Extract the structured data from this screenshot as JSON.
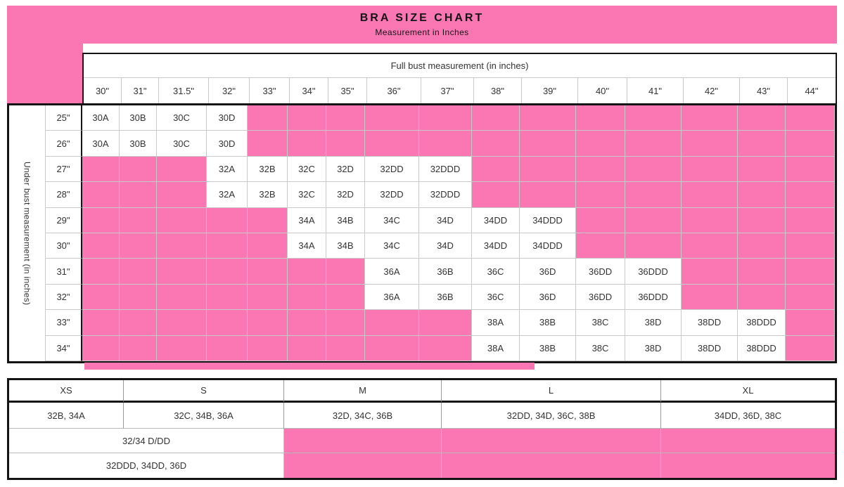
{
  "chart_data": {
    "type": "table",
    "title": "BRA SIZE CHART",
    "subtitle": "Measurement in Inches",
    "accent_pink": "#FA77B4",
    "main_table": {
      "column_axis_label": "Full bust measurement (in inches)",
      "row_axis_label": "Under bust measurement (in inches)",
      "columns": [
        "30\"",
        "31\"",
        "31.5\"",
        "32\"",
        "33\"",
        "34\"",
        "35\"",
        "36\"",
        "37\"",
        "38\"",
        "39\"",
        "40\"",
        "41\"",
        "42\"",
        "43\"",
        "44\""
      ],
      "rows": [
        {
          "under_bust": "25\"",
          "cells": [
            "30A",
            "30B",
            "30C",
            "30D",
            "",
            "",
            "",
            "",
            "",
            "",
            "",
            "",
            "",
            "",
            "",
            ""
          ]
        },
        {
          "under_bust": "26\"",
          "cells": [
            "30A",
            "30B",
            "30C",
            "30D",
            "",
            "",
            "",
            "",
            "",
            "",
            "",
            "",
            "",
            "",
            "",
            ""
          ]
        },
        {
          "under_bust": "27\"",
          "cells": [
            "",
            "",
            "",
            "32A",
            "32B",
            "32C",
            "32D",
            "32DD",
            "32DDD",
            "",
            "",
            "",
            "",
            "",
            "",
            ""
          ]
        },
        {
          "under_bust": "28\"",
          "cells": [
            "",
            "",
            "",
            "32A",
            "32B",
            "32C",
            "32D",
            "32DD",
            "32DDD",
            "",
            "",
            "",
            "",
            "",
            "",
            ""
          ]
        },
        {
          "under_bust": "29\"",
          "cells": [
            "",
            "",
            "",
            "",
            "",
            "34A",
            "34B",
            "34C",
            "34D",
            "34DD",
            "34DDD",
            "",
            "",
            "",
            "",
            ""
          ]
        },
        {
          "under_bust": "30\"",
          "cells": [
            "",
            "",
            "",
            "",
            "",
            "34A",
            "34B",
            "34C",
            "34D",
            "34DD",
            "34DDD",
            "",
            "",
            "",
            "",
            ""
          ]
        },
        {
          "under_bust": "31\"",
          "cells": [
            "",
            "",
            "",
            "",
            "",
            "",
            "",
            "36A",
            "36B",
            "36C",
            "36D",
            "36DD",
            "36DDD",
            "",
            "",
            ""
          ]
        },
        {
          "under_bust": "32\"",
          "cells": [
            "",
            "",
            "",
            "",
            "",
            "",
            "",
            "36A",
            "36B",
            "36C",
            "36D",
            "36DD",
            "36DDD",
            "",
            "",
            ""
          ]
        },
        {
          "under_bust": "33\"",
          "cells": [
            "",
            "",
            "",
            "",
            "",
            "",
            "",
            "",
            "",
            "38A",
            "38B",
            "38C",
            "38D",
            "38DD",
            "38DDD",
            ""
          ]
        },
        {
          "under_bust": "34\"",
          "cells": [
            "",
            "",
            "",
            "",
            "",
            "",
            "",
            "",
            "",
            "38A",
            "38B",
            "38C",
            "38D",
            "38DD",
            "38DDD",
            ""
          ]
        }
      ]
    },
    "letter_size_table": {
      "headers": [
        "XS",
        "S",
        "M",
        "L",
        "XL"
      ],
      "cup_sizes": [
        "32B, 34A",
        "32C, 34B, 36A",
        "32D, 34C, 36B",
        "32DD, 34D, 36C, 38B",
        "34DD, 36D, 38C"
      ],
      "extra_rows": [
        "32/34 D/DD",
        "32DDD, 34DD, 36D"
      ]
    }
  }
}
